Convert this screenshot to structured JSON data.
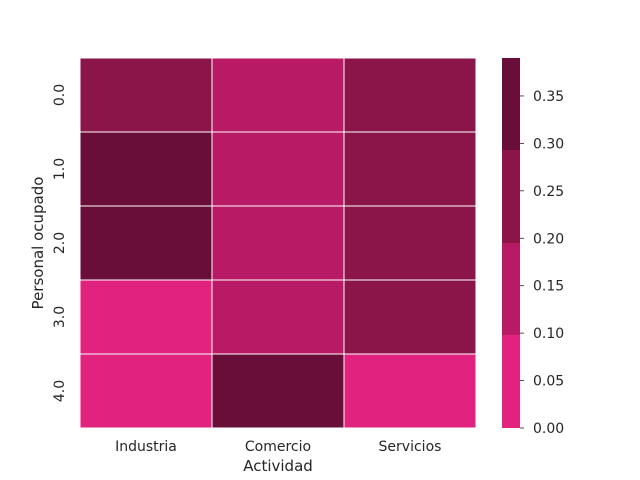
{
  "chart_data": {
    "type": "heatmap",
    "xlabel": "Actividad",
    "ylabel": "Personal ocupado",
    "x_categories": [
      "Industria",
      "Comercio",
      "Servicios"
    ],
    "y_categories": [
      "0.0",
      "1.0",
      "2.0",
      "3.0",
      "4.0"
    ],
    "values": [
      [
        0.22,
        0.14,
        0.22
      ],
      [
        0.32,
        0.14,
        0.22
      ],
      [
        0.32,
        0.14,
        0.22
      ],
      [
        0.04,
        0.14,
        0.22
      ],
      [
        0.04,
        0.38,
        0.04
      ]
    ],
    "colorbar": {
      "min": 0.0,
      "max": 0.39,
      "ticks": [
        "0.00",
        "0.05",
        "0.10",
        "0.15",
        "0.20",
        "0.25",
        "0.30",
        "0.35"
      ],
      "bins": [
        {
          "from": 0.0,
          "to": 0.098,
          "color": "#e2227f"
        },
        {
          "from": 0.098,
          "to": 0.195,
          "color": "#b91a66"
        },
        {
          "from": 0.195,
          "to": 0.293,
          "color": "#8b1449"
        },
        {
          "from": 0.293,
          "to": 0.39,
          "color": "#680e38"
        }
      ]
    },
    "grid_line_color": "#ffffff"
  }
}
